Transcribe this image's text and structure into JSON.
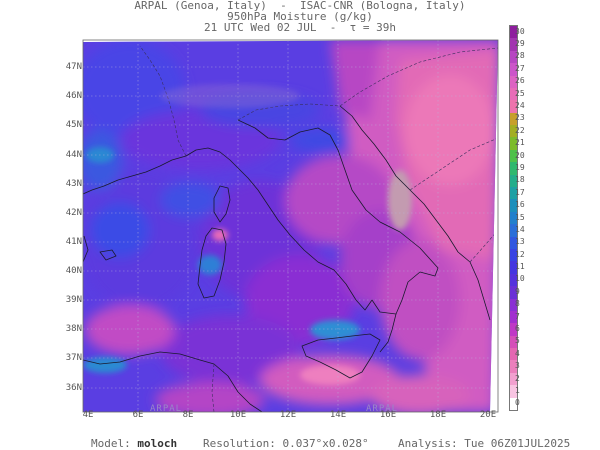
{
  "header": {
    "line1": "ARPAL (Genoa, Italy)  -  ISAC-CNR (Bologna, Italy)",
    "line2": "950hPa Moisture (g/kg)",
    "line3": "21 UTC Wed 02 JUL  -  τ = 39h"
  },
  "latitudes": [
    "47N",
    "46N",
    "45N",
    "44N",
    "43N",
    "42N",
    "41N",
    "40N",
    "39N",
    "38N",
    "37N",
    "36N"
  ],
  "longitudes": [
    "4E",
    "6E",
    "8E",
    "10E",
    "12E",
    "14E",
    "16E",
    "18E",
    "20E"
  ],
  "colorbar": {
    "labels": [
      "30",
      "29",
      "28",
      "27",
      "26",
      "25",
      "24",
      "23",
      "22",
      "21",
      "20",
      "19",
      "18",
      "17",
      "16",
      "15",
      "14",
      "13",
      "12",
      "11",
      "10",
      "9",
      "8",
      "7",
      "6",
      "5",
      "4",
      "3",
      "2",
      "1",
      "0"
    ],
    "colors": [
      "#8e1e9e",
      "#a235b0",
      "#b746c2",
      "#cc55c9",
      "#dd63c3",
      "#e86cb8",
      "#ee74ad",
      "#c79f2b",
      "#a3ae23",
      "#7cbb2b",
      "#4fc14a",
      "#2fb86e",
      "#23ad8a",
      "#1ea0a4",
      "#1d8fbb",
      "#2280cc",
      "#2a6ed8",
      "#3157e0",
      "#3a44e2",
      "#4537e0",
      "#5433dc",
      "#6a30d6",
      "#8a2fd3",
      "#a12fcf",
      "#bf39c6",
      "#d54fb9",
      "#e465b2",
      "#eb7fbc",
      "#f2a0cf",
      "#f8c4e2",
      "#ffffff"
    ]
  },
  "footer": {
    "model_label": "Model:",
    "model_value": "moloch",
    "resolution_label": "Resolution:",
    "resolution_value": "0.037°x0.028°",
    "analysis_label": "Analysis:",
    "analysis_value": "Tue 06Z01JUL2025"
  },
  "watermarks": [
    "ARPAL",
    "ARPAL"
  ]
}
